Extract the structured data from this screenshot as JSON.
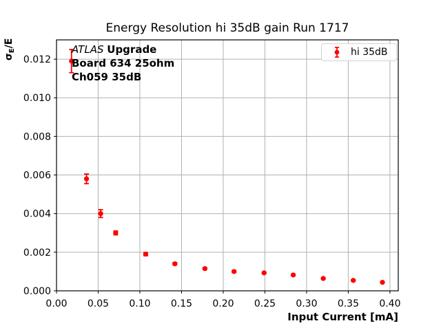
{
  "chart_data": {
    "type": "scatter",
    "title": "Energy Resolution hi 35dB gain Run 1717",
    "xlabel": "Input Current [mA]",
    "ylabel": "σ_E/E",
    "ylabel_parts": {
      "sigma": "σ",
      "sub": "E",
      "rest": "/E"
    },
    "xlim": [
      0,
      0.41
    ],
    "ylim": [
      0,
      0.013
    ],
    "x_tick_labels": [
      "0.00",
      "0.05",
      "0.10",
      "0.15",
      "0.20",
      "0.25",
      "0.30",
      "0.35",
      "0.40"
    ],
    "y_tick_labels": [
      "0.000",
      "0.002",
      "0.004",
      "0.006",
      "0.008",
      "0.010",
      "0.012"
    ],
    "grid": true,
    "legend": {
      "label": "hi 35dB",
      "position": "upper right"
    },
    "annotation": {
      "line1_italic": "ATLAS",
      "line1_bold": "Upgrade",
      "line2": "Board 634 25ohm",
      "line3": "Ch059 35dB"
    },
    "series": [
      {
        "name": "hi 35dB",
        "marker": "circle-with-errorbar",
        "color": "#ff0000",
        "x": [
          0.018,
          0.036,
          0.053,
          0.071,
          0.107,
          0.142,
          0.178,
          0.213,
          0.249,
          0.284,
          0.32,
          0.356,
          0.391
        ],
        "y": [
          0.0119,
          0.0058,
          0.004,
          0.003,
          0.0019,
          0.0014,
          0.00115,
          0.001,
          0.00093,
          0.00082,
          0.00064,
          0.00054,
          0.00044
        ],
        "yerr": [
          0.0006,
          0.00025,
          0.0002,
          0.0001,
          8e-05,
          6e-05,
          5e-05,
          5e-05,
          4e-05,
          4e-05,
          3e-05,
          3e-05,
          3e-05
        ]
      }
    ],
    "colors": {
      "marker": "#ff0000",
      "grid": "#b0b0b0",
      "spine": "#000000",
      "text": "#000000"
    }
  }
}
